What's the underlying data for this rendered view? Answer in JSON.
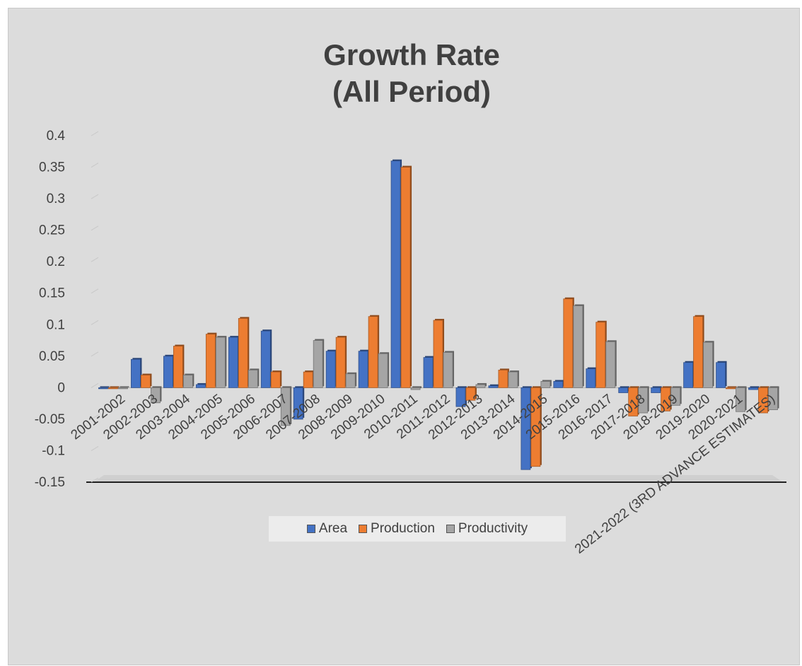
{
  "chart_data": {
    "type": "bar",
    "title_lines": [
      "Growth Rate",
      "(All Period)"
    ],
    "categories": [
      "2001-2002",
      "2002-2003",
      "2003-2004",
      "2004-2005",
      "2005-2006",
      "2006-2007",
      "2007-2008",
      "2008-2009",
      "2009-2010",
      "2010-2011",
      "2011-2012",
      "2012-2013",
      "2013-2014",
      "2014-2015",
      "2015-2016",
      "2016-2017",
      "2017-2018",
      "2018-2019",
      "2019-2020",
      "2020-2021",
      "2021-2022 (3RD ADVANCE ESTIMATES)"
    ],
    "series": [
      {
        "name": "Area",
        "color": "#4472c4",
        "values": [
          0,
          0.045,
          0.05,
          0.005,
          0.08,
          0.09,
          -0.05,
          0.058,
          0.058,
          0.36,
          0.048,
          -0.03,
          0.003,
          -0.13,
          0.01,
          0.03,
          -0.008,
          -0.008,
          0.04,
          0.04,
          -0.003
        ]
      },
      {
        "name": "Production",
        "color": "#ed7d31",
        "values": [
          0,
          0.02,
          0.066,
          0.085,
          0.11,
          0.025,
          0.025,
          0.08,
          0.113,
          0.35,
          0.107,
          -0.02,
          0.028,
          -0.125,
          0.141,
          0.104,
          -0.045,
          -0.037,
          0.113,
          0,
          -0.04
        ]
      },
      {
        "name": "Productivity",
        "color": "#a5a5a5",
        "values": [
          0,
          -0.024,
          0.02,
          0.08,
          0.028,
          -0.06,
          0.075,
          0.022,
          0.054,
          -0.003,
          0.056,
          0.005,
          0.025,
          0.01,
          0.13,
          0.073,
          -0.04,
          -0.028,
          0.072,
          -0.038,
          -0.035
        ]
      }
    ],
    "yticks": [
      "0.4",
      "0.35",
      "0.3",
      "0.25",
      "0.2",
      "0.15",
      "0.1",
      "0.05",
      "0",
      "-0.05",
      "-0.1",
      "-0.15"
    ],
    "ylim": [
      -0.15,
      0.4
    ],
    "grid": false,
    "legend_position": "bottom"
  }
}
